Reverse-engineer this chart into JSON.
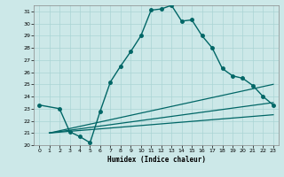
{
  "xlabel": "Humidex (Indice chaleur)",
  "bg_color": "#cce8e8",
  "line_color": "#006666",
  "grid_color": "#aad4d4",
  "xlim": [
    -0.5,
    23.5
  ],
  "ylim": [
    20,
    31.5
  ],
  "yticks": [
    20,
    21,
    22,
    23,
    24,
    25,
    26,
    27,
    28,
    29,
    30,
    31
  ],
  "xticks": [
    0,
    1,
    2,
    3,
    4,
    5,
    6,
    7,
    8,
    9,
    10,
    11,
    12,
    13,
    14,
    15,
    16,
    17,
    18,
    19,
    20,
    21,
    22,
    23
  ],
  "series": [
    {
      "x": [
        0,
        2,
        3,
        4,
        5,
        6,
        7,
        8,
        9,
        10,
        11,
        12,
        13,
        14,
        15,
        16,
        17,
        18,
        19,
        20,
        21,
        22,
        23
      ],
      "y": [
        23.3,
        23.0,
        21.1,
        20.7,
        20.2,
        22.8,
        25.2,
        26.5,
        27.7,
        29.0,
        31.1,
        31.2,
        31.5,
        30.2,
        30.3,
        29.0,
        28.0,
        26.3,
        25.7,
        25.5,
        24.9,
        24.0,
        23.3
      ],
      "marker": "o",
      "markersize": 2.5,
      "linewidth": 1.0
    },
    {
      "x": [
        1,
        23
      ],
      "y": [
        21.0,
        25.0
      ],
      "marker": null,
      "linewidth": 0.9
    },
    {
      "x": [
        1,
        23
      ],
      "y": [
        21.0,
        23.5
      ],
      "marker": null,
      "linewidth": 0.9
    },
    {
      "x": [
        1,
        23
      ],
      "y": [
        21.0,
        22.5
      ],
      "marker": null,
      "linewidth": 0.9
    }
  ]
}
